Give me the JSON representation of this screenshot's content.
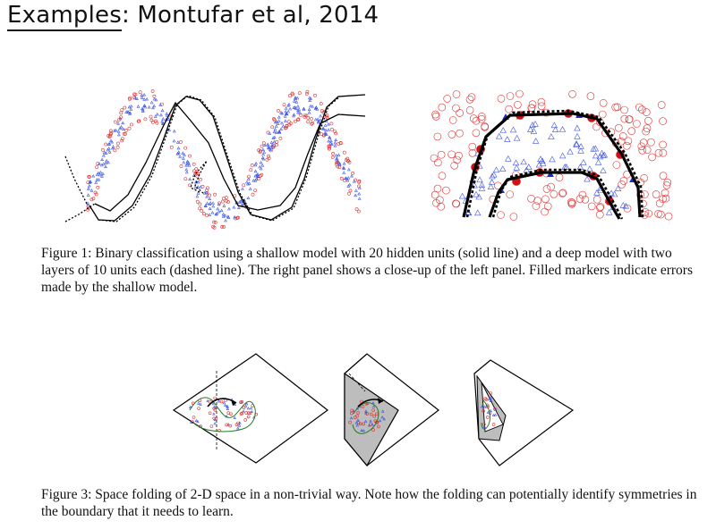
{
  "slide": {
    "title_prefix": "Examples",
    "title_rest": ": Montufar et al, 2014"
  },
  "figure1": {
    "caption": "Figure 1: Binary classification using a shallow model with 20 hidden units (solid line) and a deep model with two layers of 10 units each (dashed line). The right panel shows a close-up of the left panel. Filled markers indicate errors made by the shallow model."
  },
  "figure3": {
    "caption": "Figure 3: Space folding of 2-D space in a non-trivial way. Note how the folding can potentially identify symmetries in the boundary that it needs to learn."
  },
  "colors": {
    "class_circle": "#e03030",
    "class_triangle": "#3f55e0",
    "fold_gray": "#bdbdbd"
  }
}
